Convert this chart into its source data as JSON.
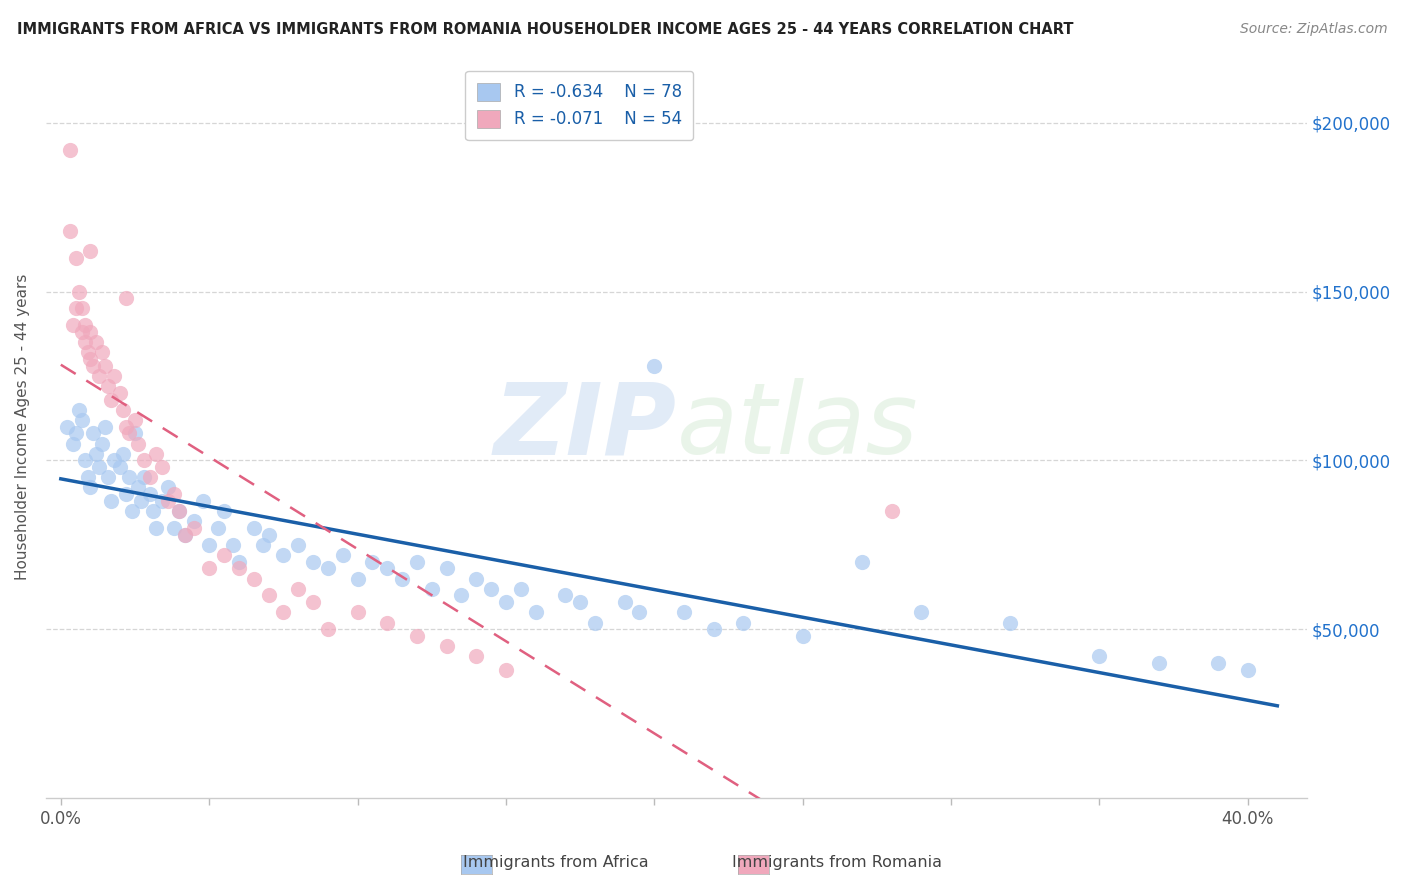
{
  "title": "IMMIGRANTS FROM AFRICA VS IMMIGRANTS FROM ROMANIA HOUSEHOLDER INCOME AGES 25 - 44 YEARS CORRELATION CHART",
  "source": "Source: ZipAtlas.com",
  "ylabel": "Householder Income Ages 25 - 44 years",
  "ytick_values": [
    50000,
    100000,
    150000,
    200000
  ],
  "ylim": [
    0,
    220000
  ],
  "xlim": [
    -0.005,
    0.42
  ],
  "africa_R": -0.634,
  "africa_N": 78,
  "romania_R": -0.071,
  "romania_N": 54,
  "africa_color": "#a8c8f0",
  "romania_color": "#f0a8bc",
  "africa_line_color": "#1a5fa8",
  "romania_line_color": "#e06080",
  "legend_label_africa": "Immigrants from Africa",
  "legend_label_romania": "Immigrants from Romania",
  "watermark_part1": "ZIP",
  "watermark_part2": "atlas",
  "background_color": "#ffffff",
  "grid_color": "#cccccc",
  "africa_x": [
    0.002,
    0.004,
    0.005,
    0.006,
    0.007,
    0.008,
    0.009,
    0.01,
    0.011,
    0.012,
    0.013,
    0.014,
    0.015,
    0.016,
    0.017,
    0.018,
    0.02,
    0.021,
    0.022,
    0.023,
    0.024,
    0.025,
    0.026,
    0.027,
    0.028,
    0.03,
    0.031,
    0.032,
    0.034,
    0.036,
    0.038,
    0.04,
    0.042,
    0.045,
    0.048,
    0.05,
    0.053,
    0.055,
    0.058,
    0.06,
    0.065,
    0.068,
    0.07,
    0.075,
    0.08,
    0.085,
    0.09,
    0.095,
    0.1,
    0.105,
    0.11,
    0.115,
    0.12,
    0.125,
    0.13,
    0.135,
    0.14,
    0.145,
    0.15,
    0.155,
    0.16,
    0.17,
    0.175,
    0.18,
    0.19,
    0.195,
    0.2,
    0.21,
    0.22,
    0.23,
    0.25,
    0.27,
    0.29,
    0.32,
    0.35,
    0.37,
    0.39,
    0.4
  ],
  "africa_y": [
    110000,
    105000,
    108000,
    115000,
    112000,
    100000,
    95000,
    92000,
    108000,
    102000,
    98000,
    105000,
    110000,
    95000,
    88000,
    100000,
    98000,
    102000,
    90000,
    95000,
    85000,
    108000,
    92000,
    88000,
    95000,
    90000,
    85000,
    80000,
    88000,
    92000,
    80000,
    85000,
    78000,
    82000,
    88000,
    75000,
    80000,
    85000,
    75000,
    70000,
    80000,
    75000,
    78000,
    72000,
    75000,
    70000,
    68000,
    72000,
    65000,
    70000,
    68000,
    65000,
    70000,
    62000,
    68000,
    60000,
    65000,
    62000,
    58000,
    62000,
    55000,
    60000,
    58000,
    52000,
    58000,
    55000,
    128000,
    55000,
    50000,
    52000,
    48000,
    70000,
    55000,
    52000,
    42000,
    40000,
    40000,
    38000
  ],
  "romania_x": [
    0.003,
    0.004,
    0.005,
    0.005,
    0.006,
    0.007,
    0.007,
    0.008,
    0.008,
    0.009,
    0.01,
    0.01,
    0.011,
    0.012,
    0.013,
    0.014,
    0.015,
    0.016,
    0.017,
    0.018,
    0.02,
    0.021,
    0.022,
    0.023,
    0.025,
    0.026,
    0.028,
    0.03,
    0.032,
    0.034,
    0.036,
    0.038,
    0.04,
    0.042,
    0.045,
    0.05,
    0.055,
    0.06,
    0.065,
    0.07,
    0.075,
    0.08,
    0.085,
    0.09,
    0.1,
    0.11,
    0.12,
    0.13,
    0.14,
    0.15,
    0.28,
    0.003,
    0.01,
    0.022
  ],
  "romania_y": [
    192000,
    140000,
    160000,
    145000,
    150000,
    138000,
    145000,
    135000,
    140000,
    132000,
    130000,
    138000,
    128000,
    135000,
    125000,
    132000,
    128000,
    122000,
    118000,
    125000,
    120000,
    115000,
    110000,
    108000,
    112000,
    105000,
    100000,
    95000,
    102000,
    98000,
    88000,
    90000,
    85000,
    78000,
    80000,
    68000,
    72000,
    68000,
    65000,
    60000,
    55000,
    62000,
    58000,
    50000,
    55000,
    52000,
    48000,
    45000,
    42000,
    38000,
    85000,
    168000,
    162000,
    148000
  ]
}
